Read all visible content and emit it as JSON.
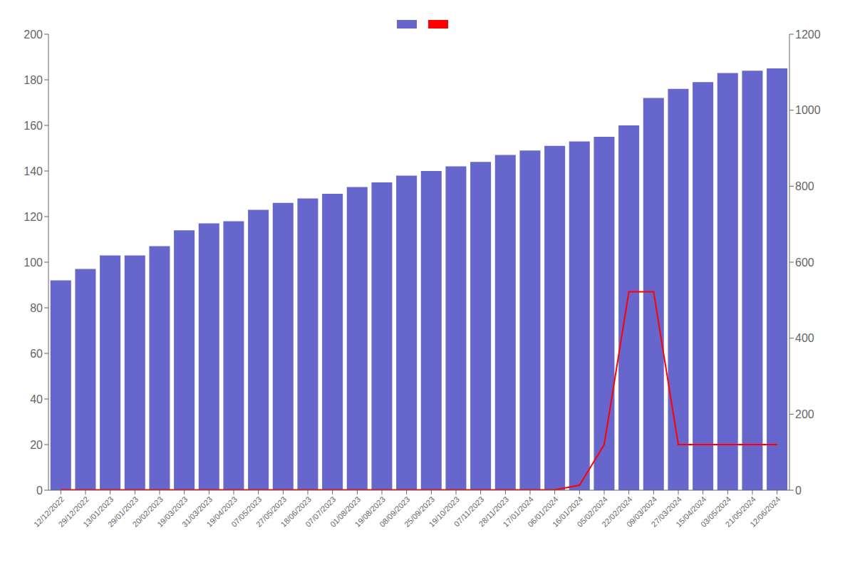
{
  "chart_data": {
    "type": "bar",
    "categories": [
      "12/12/2022",
      "29/12/2022",
      "13/01/2023",
      "29/01/2023",
      "20/02/2023",
      "19/03/2023",
      "31/03/2023",
      "19/04/2023",
      "07/05/2023",
      "27/05/2023",
      "18/06/2023",
      "07/07/2023",
      "01/08/2023",
      "19/08/2023",
      "08/09/2023",
      "25/09/2023",
      "19/10/2023",
      "07/11/2023",
      "28/11/2023",
      "17/01/2024",
      "06/01/2024",
      "16/01/2024",
      "05/02/2024",
      "22/02/2024",
      "09/03/2024",
      "27/03/2024",
      "15/04/2024",
      "03/05/2024",
      "21/05/2024",
      "12/06/2024"
    ],
    "series": [
      {
        "type": "bar",
        "color": "#6666cc",
        "values": [
          92,
          97,
          103,
          103,
          107,
          114,
          117,
          118,
          123,
          126,
          128,
          130,
          133,
          135,
          138,
          140,
          142,
          144,
          147,
          149,
          151,
          153,
          155,
          160,
          172,
          176,
          179,
          183,
          184,
          185
        ]
      },
      {
        "type": "line",
        "color": "#ff0000",
        "axis": "y2",
        "values": [
          1,
          1,
          1,
          1,
          1,
          1,
          1,
          1,
          1,
          1,
          1,
          1,
          1,
          1,
          1,
          1,
          1,
          1,
          1,
          1,
          1,
          13,
          120,
          522,
          522,
          120,
          120,
          120,
          120,
          120
        ]
      }
    ],
    "ylim": [
      0,
      200
    ],
    "yticks": [
      0,
      20,
      40,
      60,
      80,
      100,
      120,
      140,
      160,
      180,
      200
    ],
    "y2lim": [
      0,
      1200
    ],
    "y2ticks": [
      0,
      200,
      400,
      600,
      800,
      1000,
      1200
    ],
    "grid": false,
    "legend": "top"
  }
}
